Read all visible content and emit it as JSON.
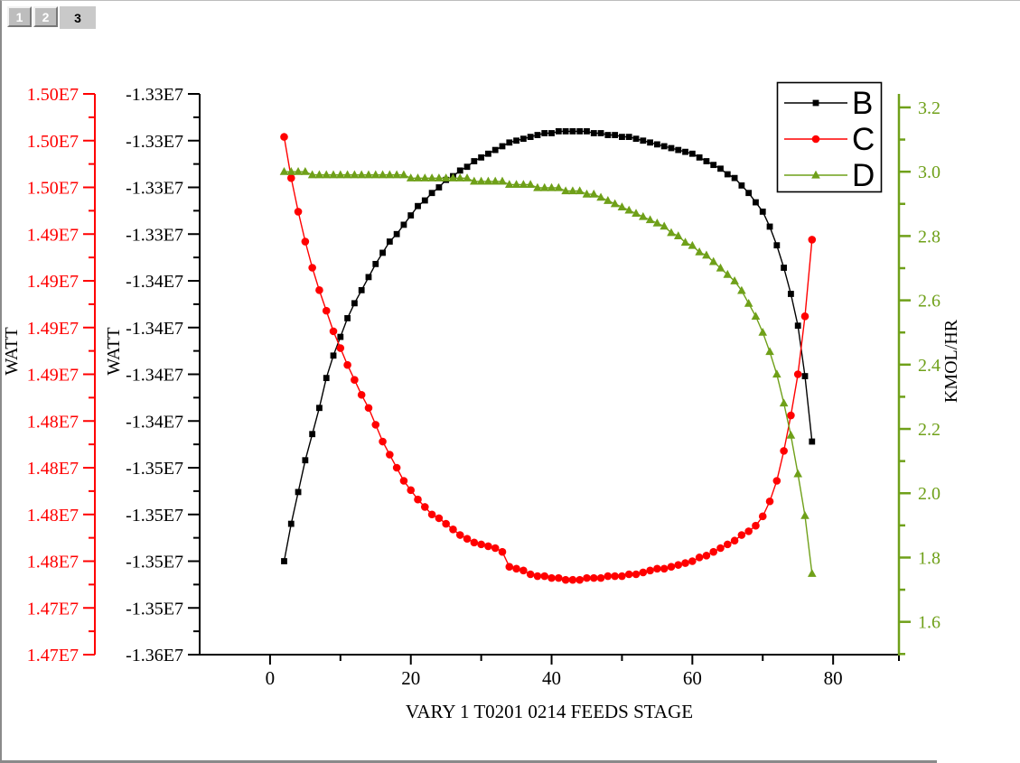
{
  "window": {
    "tabs": [
      "1",
      "2",
      "3"
    ],
    "active_tab": "3"
  },
  "chart_data": {
    "type": "line",
    "title": "",
    "x_axis": {
      "label": "VARY 1 T0201 0214 FEEDS STAGE",
      "major_ticks": [
        0,
        20,
        40,
        60,
        80
      ],
      "minor_ticks": [
        10,
        30,
        50,
        70,
        90
      ],
      "range": [
        -10,
        89.35
      ]
    },
    "axes": {
      "left_outer": {
        "title": "WATT",
        "color": "#ff0000",
        "title_color": "#000000",
        "range_top": 15000000.0,
        "range_bottom": 14700000.0,
        "tick_labels": [
          "1.50E7",
          "1.50E7",
          "1.50E7",
          "1.49E7",
          "1.49E7",
          "1.49E7",
          "1.49E7",
          "1.48E7",
          "1.48E7",
          "1.48E7",
          "1.48E7",
          "1.47E7",
          "1.47E7"
        ]
      },
      "left_inner": {
        "title": "WATT",
        "color": "#000000",
        "title_color": "#000000",
        "range_top": -13300000.0,
        "range_bottom": -13600000.0,
        "tick_labels": [
          "-1.33E7",
          "-1.33E7",
          "-1.33E7",
          "-1.33E7",
          "-1.34E7",
          "-1.34E7",
          "-1.34E7",
          "-1.34E7",
          "-1.35E7",
          "-1.35E7",
          "-1.35E7",
          "-1.35E7",
          "-1.36E7"
        ]
      },
      "right": {
        "title": "KMOL/HR",
        "color": "#6fa019",
        "title_color": "#000000",
        "range_top": 3.242,
        "range_bottom": 1.498,
        "major_ticks": [
          3.2,
          3.0,
          2.8,
          2.6,
          2.4,
          2.2,
          2.0,
          1.8,
          1.6
        ],
        "minor_ticks": [
          3.1,
          2.9,
          2.7,
          2.5,
          2.3,
          2.1,
          1.9,
          1.7,
          1.5
        ],
        "tick_labels": [
          "3.2",
          "3.0",
          "2.8",
          "2.6",
          "2.4",
          "2.2",
          "2.0",
          "1.8",
          "1.6"
        ]
      }
    },
    "legend": {
      "position": "top-right",
      "entries": [
        "B",
        "C",
        "D"
      ]
    },
    "x": [
      2,
      3,
      4,
      5,
      6,
      7,
      8,
      9,
      10,
      11,
      12,
      13,
      14,
      15,
      16,
      17,
      18,
      19,
      20,
      21,
      22,
      23,
      24,
      25,
      26,
      27,
      28,
      29,
      30,
      31,
      32,
      33,
      34,
      35,
      36,
      37,
      38,
      39,
      40,
      41,
      42,
      43,
      44,
      45,
      46,
      47,
      48,
      49,
      50,
      51,
      52,
      53,
      54,
      55,
      56,
      57,
      58,
      59,
      60,
      61,
      62,
      63,
      64,
      65,
      66,
      67,
      68,
      69,
      70,
      71,
      72,
      73,
      74,
      75,
      76,
      77
    ],
    "series": [
      {
        "name": "B",
        "axis": "left_inner",
        "color": "#000000",
        "marker": "square",
        "values": [
          -13550000.0,
          -13530000.0,
          -13513000.0,
          -13496000.0,
          -13482000.0,
          -13468000.0,
          -13452000.0,
          -13440000.0,
          -13430000.0,
          -13420000.0,
          -13412000.0,
          -13405000.0,
          -13398000.0,
          -13391000.0,
          -13385000.0,
          -13379000.0,
          -13375000.0,
          -13370000.0,
          -13365000.0,
          -13360000.0,
          -13357000.0,
          -13353000.0,
          -13350000.0,
          -13346000.0,
          -13344000.0,
          -13341000.0,
          -13339000.0,
          -13336000.0,
          -13334000.0,
          -13332000.0,
          -13330000.0,
          -13328000.0,
          -13326000.0,
          -13325000.0,
          -13324000.0,
          -13323000.0,
          -13322000.0,
          -13321000.0,
          -13321000.0,
          -13320000.0,
          -13320000.0,
          -13320000.0,
          -13320000.0,
          -13320000.0,
          -13321000.0,
          -13321000.0,
          -13322000.0,
          -13322000.0,
          -13323000.0,
          -13323000.0,
          -13324000.0,
          -13325000.0,
          -13326000.0,
          -13327000.0,
          -13328000.0,
          -13329000.0,
          -13330000.0,
          -13331000.0,
          -13332000.0,
          -13334000.0,
          -13336000.0,
          -13338000.0,
          -13340000.0,
          -13343000.0,
          -13345000.0,
          -13349000.0,
          -13353000.0,
          -13358000.0,
          -13363000.0,
          -13371000.0,
          -13381000.0,
          -13393000.0,
          -13407000.0,
          -13424000.0,
          -13451000.0,
          -13486000.0
        ]
      },
      {
        "name": "C",
        "axis": "left_outer",
        "color": "#ff0000",
        "marker": "circle",
        "values": [
          14977000.0,
          14955000.0,
          14937000.0,
          14921000.0,
          14907000.0,
          14895000.0,
          14884000.0,
          14873000.0,
          14864000.0,
          14855000.0,
          14847000.0,
          14839000.0,
          14832000.0,
          14823000.0,
          14814000.0,
          14807000.0,
          14800000.0,
          14793000.0,
          14788000.0,
          14783000.0,
          14779000.0,
          14775000.0,
          14773000.0,
          14770000.0,
          14767000.0,
          14764000.0,
          14762000.0,
          14760000.0,
          14759000.0,
          14758000.0,
          14757000.0,
          14755000.0,
          14747000.0,
          14746000.0,
          14745000.0,
          14743000.0,
          14742000.0,
          14742000.0,
          14741000.0,
          14741000.0,
          14740000.0,
          14740000.0,
          14740000.0,
          14741000.0,
          14741000.0,
          14741000.0,
          14742000.0,
          14742000.0,
          14742000.0,
          14743000.0,
          14743000.0,
          14744000.0,
          14745000.0,
          14746000.0,
          14746000.0,
          14747000.0,
          14748000.0,
          14749000.0,
          14750000.0,
          14752000.0,
          14753000.0,
          14755000.0,
          14757000.0,
          14759000.0,
          14761000.0,
          14764000.0,
          14766000.0,
          14769000.0,
          14774000.0,
          14782000.0,
          14793000.0,
          14809000.0,
          14828000.0,
          14850000.0,
          14881000.0,
          14922000.0
        ]
      },
      {
        "name": "D",
        "axis": "right",
        "color": "#6fa019",
        "marker": "triangle",
        "values": [
          3.0,
          3.0,
          3.0,
          3.0,
          2.99,
          2.99,
          2.99,
          2.99,
          2.99,
          2.99,
          2.99,
          2.99,
          2.99,
          2.99,
          2.99,
          2.99,
          2.99,
          2.99,
          2.98,
          2.98,
          2.98,
          2.98,
          2.98,
          2.98,
          2.98,
          2.98,
          2.98,
          2.97,
          2.97,
          2.97,
          2.97,
          2.97,
          2.96,
          2.96,
          2.96,
          2.96,
          2.95,
          2.95,
          2.95,
          2.95,
          2.94,
          2.94,
          2.94,
          2.93,
          2.93,
          2.92,
          2.91,
          2.9,
          2.89,
          2.88,
          2.87,
          2.86,
          2.85,
          2.84,
          2.83,
          2.81,
          2.8,
          2.78,
          2.77,
          2.75,
          2.74,
          2.72,
          2.7,
          2.68,
          2.66,
          2.63,
          2.59,
          2.55,
          2.5,
          2.44,
          2.37,
          2.28,
          2.18,
          2.06,
          1.93,
          1.75
        ]
      }
    ]
  }
}
